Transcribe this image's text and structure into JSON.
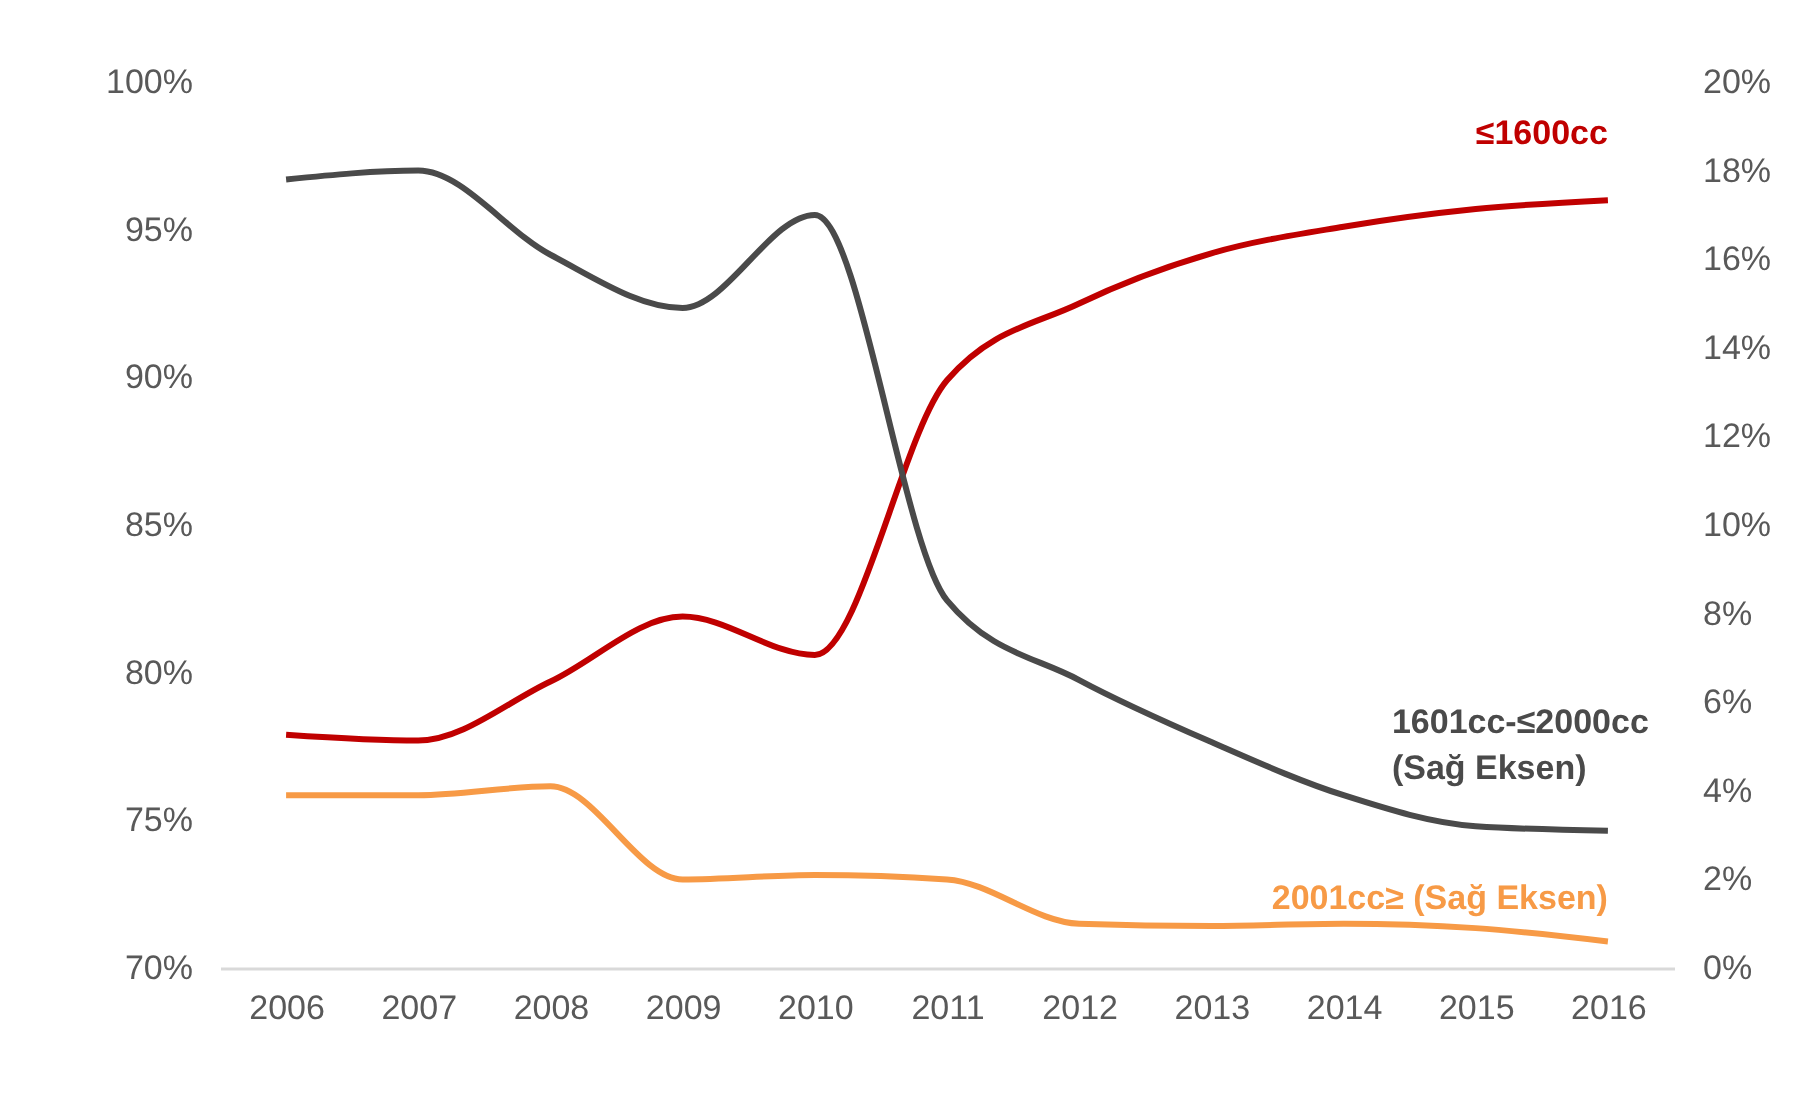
{
  "chart_data": {
    "type": "line",
    "categories": [
      "2006",
      "2007",
      "2008",
      "2009",
      "2010",
      "2011",
      "2012",
      "2013",
      "2014",
      "2015",
      "2016"
    ],
    "series": [
      {
        "name": "≤1600cc",
        "color": "#c00000",
        "values": [
          77.9,
          77.7,
          79.7,
          81.9,
          80.6,
          89.9,
          92.5,
          94.2,
          95.1,
          95.7,
          96.0
        ]
      },
      {
        "name": "1601cc-≤2000cc\n(Sağ Eksen)",
        "color": "#4a4a4a",
        "axis": "y2",
        "values": [
          17.8,
          18.0,
          16.1,
          14.9,
          17.0,
          8.3,
          6.5,
          5.1,
          3.9,
          3.2,
          3.1
        ]
      },
      {
        "name": "2001cc≥  (Sağ Eksen)",
        "color": "#f79a46",
        "axis": "y2",
        "values": [
          3.9,
          3.9,
          4.1,
          2.0,
          2.1,
          2.0,
          1.0,
          0.95,
          1.0,
          0.9,
          0.6
        ]
      }
    ],
    "ylim": [
      70,
      100
    ],
    "yticks": [
      {
        "value": 70,
        "label": "70%"
      },
      {
        "value": 75,
        "label": "75%"
      },
      {
        "value": 80,
        "label": "80%"
      },
      {
        "value": 85,
        "label": "85%"
      },
      {
        "value": 90,
        "label": "90%"
      },
      {
        "value": 95,
        "label": "95%"
      },
      {
        "value": 100,
        "label": "100%"
      }
    ],
    "y2lim": [
      0,
      20
    ],
    "y2ticks": [
      {
        "value": 0,
        "label": "0%"
      },
      {
        "value": 2,
        "label": "2%"
      },
      {
        "value": 4,
        "label": "4%"
      },
      {
        "value": 6,
        "label": "6%"
      },
      {
        "value": 8,
        "label": "8%"
      },
      {
        "value": 10,
        "label": "10%"
      },
      {
        "value": 12,
        "label": "12%"
      },
      {
        "value": 14,
        "label": "14%"
      },
      {
        "value": 16,
        "label": "16%"
      },
      {
        "value": 18,
        "label": "18%"
      },
      {
        "value": 20,
        "label": "20%"
      }
    ],
    "grid": false,
    "legend": false,
    "line_style": "solid",
    "marker": "none"
  }
}
